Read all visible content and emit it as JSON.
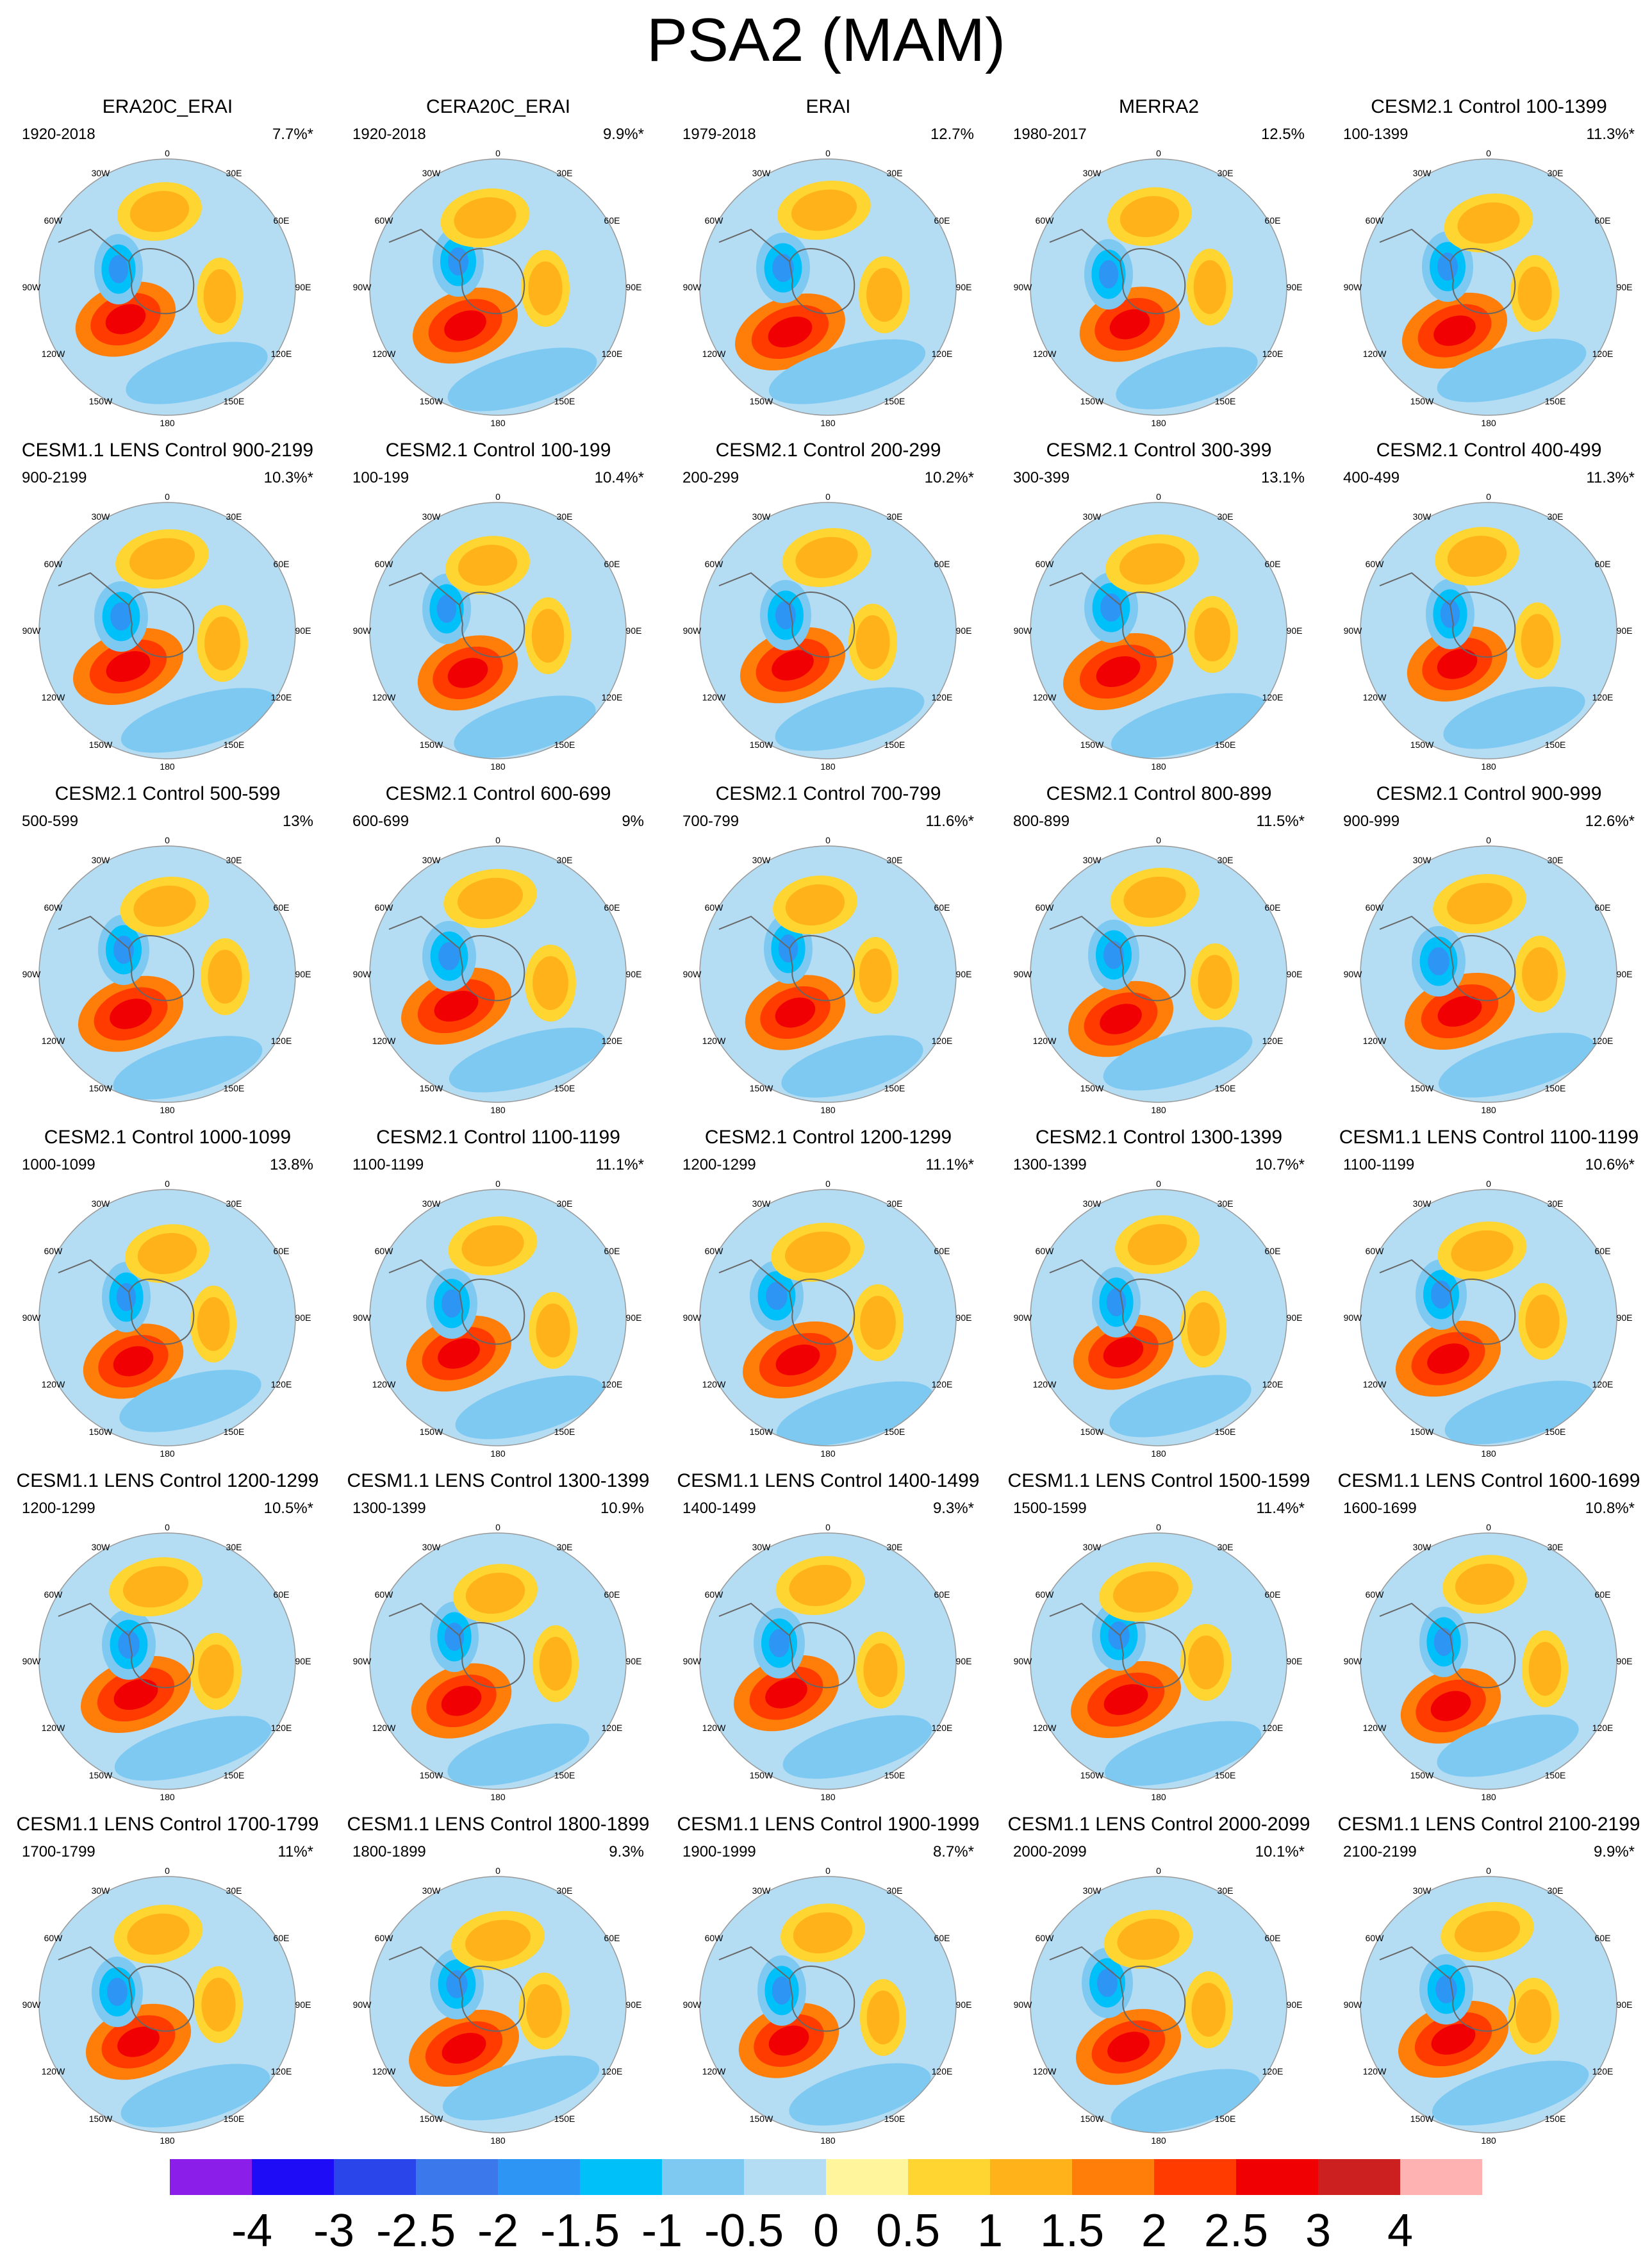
{
  "title": "PSA2 (MAM)",
  "colors": {
    "bins": [
      "#8c1eea",
      "#1e0cf7",
      "#2a46ea",
      "#3a78eb",
      "#2d96f5",
      "#00c0f9",
      "#7ec9f1",
      "#b4dcf2",
      "#fff59d",
      "#ffd532",
      "#ffb21a",
      "#ff7e09",
      "#ff3b00",
      "#f00002",
      "#cc1f1f",
      "#ffb2b2"
    ],
    "map_outline": "#999999",
    "coast": "#666666"
  },
  "colorbar": {
    "labels": [
      "-4",
      "-3",
      "-2.5",
      "-2",
      "-1.5",
      "-1",
      "-0.5",
      "0",
      "0.5",
      "1",
      "1.5",
      "2",
      "2.5",
      "3",
      "4"
    ]
  },
  "map_labels": {
    "top": "0",
    "ne1": "30E",
    "ne2": "60E",
    "e": "90E",
    "se1": "120E",
    "se2": "150E",
    "bottom": "180",
    "sw1": "150W",
    "sw2": "120W",
    "w": "90W",
    "nw2": "60W",
    "nw1": "30W"
  },
  "panels": [
    {
      "title": "ERA20C_ERAI",
      "period": "1920-2018",
      "variance": "7.7%*"
    },
    {
      "title": "CERA20C_ERAI",
      "period": "1920-2018",
      "variance": "9.9%*"
    },
    {
      "title": "ERAI",
      "period": "1979-2018",
      "variance": "12.7%"
    },
    {
      "title": "MERRA2",
      "period": "1980-2017",
      "variance": "12.5%"
    },
    {
      "title": "CESM2.1 Control 100-1399",
      "period": "100-1399",
      "variance": "11.3%*"
    },
    {
      "title": "CESM1.1 LENS Control 900-2199",
      "period": "900-2199",
      "variance": "10.3%*"
    },
    {
      "title": "CESM2.1 Control 100-199",
      "period": "100-199",
      "variance": "10.4%*"
    },
    {
      "title": "CESM2.1 Control 200-299",
      "period": "200-299",
      "variance": "10.2%*"
    },
    {
      "title": "CESM2.1 Control 300-399",
      "period": "300-399",
      "variance": "13.1%"
    },
    {
      "title": "CESM2.1 Control 400-499",
      "period": "400-499",
      "variance": "11.3%*"
    },
    {
      "title": "CESM2.1 Control 500-599",
      "period": "500-599",
      "variance": "13%"
    },
    {
      "title": "CESM2.1 Control 600-699",
      "period": "600-699",
      "variance": "9%"
    },
    {
      "title": "CESM2.1 Control 700-799",
      "period": "700-799",
      "variance": "11.6%*"
    },
    {
      "title": "CESM2.1 Control 800-899",
      "period": "800-899",
      "variance": "11.5%*"
    },
    {
      "title": "CESM2.1 Control 900-999",
      "period": "900-999",
      "variance": "12.6%*"
    },
    {
      "title": "CESM2.1 Control 1000-1099",
      "period": "1000-1099",
      "variance": "13.8%"
    },
    {
      "title": "CESM2.1 Control 1100-1199",
      "period": "1100-1199",
      "variance": "11.1%*"
    },
    {
      "title": "CESM2.1 Control 1200-1299",
      "period": "1200-1299",
      "variance": "11.1%*"
    },
    {
      "title": "CESM2.1 Control 1300-1399",
      "period": "1300-1399",
      "variance": "10.7%*"
    },
    {
      "title": "CESM1.1 LENS Control 1100-1199",
      "period": "1100-1199",
      "variance": "10.6%*"
    },
    {
      "title": "CESM1.1 LENS Control 1200-1299",
      "period": "1200-1299",
      "variance": "10.5%*"
    },
    {
      "title": "CESM1.1 LENS Control 1300-1399",
      "period": "1300-1399",
      "variance": "10.9%"
    },
    {
      "title": "CESM1.1 LENS Control 1400-1499",
      "period": "1400-1499",
      "variance": "9.3%*"
    },
    {
      "title": "CESM1.1 LENS Control 1500-1599",
      "period": "1500-1599",
      "variance": "11.4%*"
    },
    {
      "title": "CESM1.1 LENS Control 1600-1699",
      "period": "1600-1699",
      "variance": "10.8%*"
    },
    {
      "title": "CESM1.1 LENS Control 1700-1799",
      "period": "1700-1799",
      "variance": "11%*"
    },
    {
      "title": "CESM1.1 LENS Control 1800-1899",
      "period": "1800-1899",
      "variance": "9.3%"
    },
    {
      "title": "CESM1.1 LENS Control 1900-1999",
      "period": "1900-1999",
      "variance": "8.7%*"
    },
    {
      "title": "CESM1.1 LENS Control 2000-2099",
      "period": "2000-2099",
      "variance": "10.1%*"
    },
    {
      "title": "CESM1.1 LENS Control 2100-2199",
      "period": "2100-2199",
      "variance": "9.9%*"
    }
  ]
}
